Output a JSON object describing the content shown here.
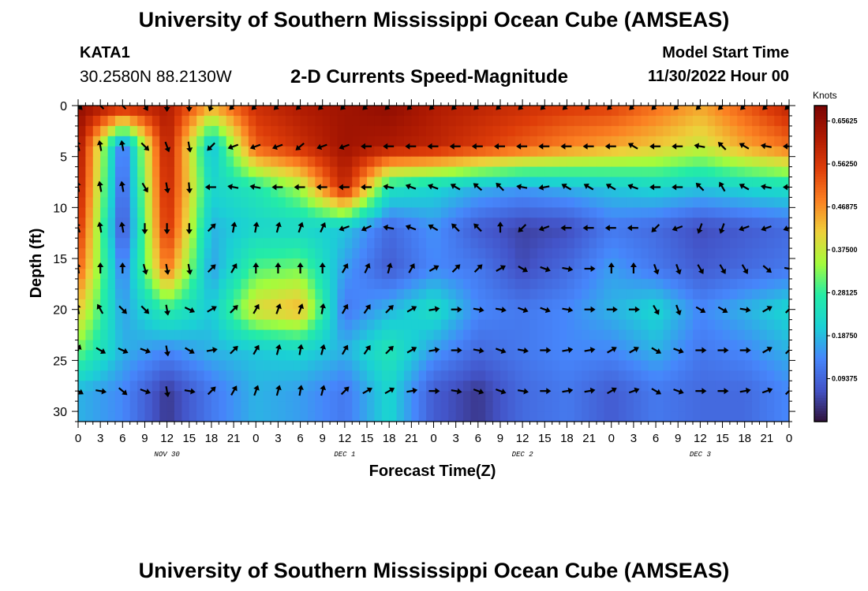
{
  "header": {
    "title": "University of Southern Mississippi Ocean Cube (AMSEAS)",
    "station": "KATA1",
    "coords": "30.2580N  88.2130W",
    "subtitle": "2-D Currents Speed-Magnitude",
    "model_start_label": "Model Start Time",
    "model_start_time": "11/30/2022 Hour 00"
  },
  "footer": {
    "title_repeat": "University of Southern Mississippi Ocean Cube (AMSEAS)"
  },
  "chart_data": {
    "type": "heatmap",
    "title": "2-D Currents Speed-Magnitude",
    "xlabel": "Forecast Time(Z)",
    "ylabel": "Depth (ft)",
    "xlim": [
      0,
      96
    ],
    "ylim": [
      31,
      0
    ],
    "x_ticks": [
      0,
      3,
      6,
      9,
      12,
      15,
      18,
      21,
      24,
      27,
      30,
      33,
      36,
      39,
      42,
      45,
      48,
      51,
      54,
      57,
      60,
      63,
      66,
      69,
      72,
      75,
      78,
      81,
      84,
      87,
      90,
      93,
      96
    ],
    "x_tick_labels": [
      "0",
      "3",
      "6",
      "9",
      "12",
      "15",
      "18",
      "21",
      "0",
      "3",
      "6",
      "9",
      "12",
      "15",
      "18",
      "21",
      "0",
      "3",
      "6",
      "9",
      "12",
      "15",
      "18",
      "21",
      "0",
      "3",
      "6",
      "9",
      "12",
      "15",
      "18",
      "21",
      "0"
    ],
    "y_ticks": [
      0,
      5,
      10,
      15,
      20,
      25,
      30
    ],
    "y_tick_labels": [
      "0",
      "5",
      "10",
      "15",
      "20",
      "25",
      "30"
    ],
    "day_labels": [
      {
        "label": "NOV 30",
        "hour": 12
      },
      {
        "label": "DEC 1",
        "hour": 36
      },
      {
        "label": "DEC 2",
        "hour": 60
      },
      {
        "label": "DEC 3",
        "hour": 84
      }
    ],
    "colorbar": {
      "units": "Knots",
      "min": 0.0,
      "max": 0.69,
      "ticks": [
        0.65625,
        0.5625,
        0.46875,
        0.375,
        0.28125,
        0.1875,
        0.09375
      ],
      "tick_labels": [
        "0.65625",
        "0.56250",
        "0.46875",
        "0.37500",
        "0.28125",
        "0.18750",
        "0.09375"
      ]
    },
    "depths": [
      0,
      4,
      8,
      12,
      16,
      20,
      24,
      28
    ],
    "hours": [
      0,
      6,
      12,
      18,
      24,
      30,
      36,
      42,
      48,
      54,
      60,
      66,
      72,
      78,
      84,
      90,
      96
    ],
    "speed": [
      [
        0.66,
        0.6,
        0.62,
        0.45,
        0.58,
        0.62,
        0.64,
        0.66,
        0.62,
        0.6,
        0.58,
        0.56,
        0.55,
        0.5,
        0.45,
        0.52,
        0.6
      ],
      [
        0.64,
        0.1,
        0.62,
        0.18,
        0.52,
        0.58,
        0.64,
        0.62,
        0.6,
        0.56,
        0.52,
        0.48,
        0.45,
        0.42,
        0.38,
        0.45,
        0.5
      ],
      [
        0.62,
        0.08,
        0.6,
        0.22,
        0.26,
        0.35,
        0.6,
        0.25,
        0.22,
        0.18,
        0.16,
        0.18,
        0.2,
        0.22,
        0.2,
        0.22,
        0.24
      ],
      [
        0.58,
        0.06,
        0.58,
        0.18,
        0.22,
        0.22,
        0.2,
        0.1,
        0.15,
        0.08,
        0.05,
        0.06,
        0.12,
        0.1,
        0.06,
        0.08,
        0.1
      ],
      [
        0.52,
        0.12,
        0.5,
        0.16,
        0.3,
        0.32,
        0.16,
        0.08,
        0.14,
        0.12,
        0.06,
        0.1,
        0.16,
        0.12,
        0.08,
        0.1,
        0.12
      ],
      [
        0.42,
        0.16,
        0.28,
        0.2,
        0.4,
        0.44,
        0.12,
        0.18,
        0.24,
        0.14,
        0.12,
        0.14,
        0.18,
        0.22,
        0.14,
        0.18,
        0.22
      ],
      [
        0.32,
        0.18,
        0.14,
        0.18,
        0.2,
        0.22,
        0.18,
        0.26,
        0.16,
        0.1,
        0.12,
        0.14,
        0.14,
        0.18,
        0.12,
        0.14,
        0.18
      ],
      [
        0.18,
        0.14,
        0.04,
        0.12,
        0.18,
        0.16,
        0.12,
        0.22,
        0.08,
        0.04,
        0.1,
        0.12,
        0.08,
        0.12,
        0.1,
        0.1,
        0.14
      ]
    ],
    "arrow_depths": [
      0,
      4,
      8,
      12,
      16,
      20,
      24,
      28
    ],
    "arrow_hours": [
      0,
      3,
      6,
      9,
      12,
      15,
      18,
      21,
      24,
      27,
      30,
      33,
      36,
      39,
      42,
      45,
      48,
      51,
      54,
      57,
      60,
      63,
      66,
      69,
      72,
      75,
      78,
      81,
      84,
      87,
      90,
      93,
      96
    ],
    "arrow_direction_deg": [
      [
        135,
        315,
        315,
        150,
        180,
        180,
        200,
        225,
        225,
        225,
        225,
        225,
        225,
        225,
        225,
        225,
        225,
        225,
        225,
        225,
        225,
        225,
        225,
        225,
        225,
        225,
        225,
        225,
        225,
        225,
        225,
        225,
        225
      ],
      [
        345,
        350,
        350,
        135,
        160,
        170,
        225,
        250,
        250,
        250,
        230,
        250,
        250,
        270,
        270,
        270,
        270,
        270,
        270,
        270,
        270,
        270,
        270,
        270,
        270,
        300,
        270,
        270,
        280,
        315,
        300,
        280,
        270
      ],
      [
        350,
        350,
        350,
        150,
        170,
        175,
        270,
        280,
        280,
        270,
        270,
        270,
        270,
        270,
        280,
        290,
        290,
        300,
        310,
        315,
        280,
        260,
        300,
        300,
        300,
        290,
        270,
        270,
        315,
        330,
        300,
        280,
        270
      ],
      [
        340,
        350,
        350,
        180,
        180,
        180,
        45,
        10,
        10,
        15,
        20,
        25,
        250,
        245,
        280,
        290,
        300,
        315,
        315,
        0,
        225,
        250,
        270,
        270,
        270,
        270,
        225,
        250,
        200,
        200,
        250,
        250,
        250
      ],
      [
        350,
        0,
        0,
        165,
        170,
        170,
        45,
        30,
        0,
        0,
        0,
        0,
        30,
        25,
        15,
        30,
        60,
        45,
        45,
        60,
        120,
        110,
        100,
        90,
        0,
        0,
        160,
        160,
        150,
        150,
        150,
        130,
        100
      ],
      [
        350,
        330,
        135,
        135,
        170,
        115,
        60,
        45,
        30,
        20,
        20,
        10,
        30,
        35,
        45,
        60,
        80,
        90,
        100,
        100,
        110,
        110,
        100,
        90,
        90,
        90,
        150,
        160,
        120,
        120,
        100,
        60,
        45
      ],
      [
        20,
        120,
        115,
        110,
        170,
        120,
        80,
        45,
        30,
        15,
        10,
        15,
        30,
        35,
        45,
        60,
        80,
        90,
        100,
        110,
        100,
        90,
        80,
        80,
        60,
        60,
        120,
        110,
        90,
        90,
        90,
        60,
        45
      ],
      [
        120,
        100,
        130,
        110,
        170,
        100,
        45,
        30,
        20,
        15,
        10,
        15,
        45,
        60,
        60,
        80,
        90,
        100,
        110,
        110,
        100,
        90,
        80,
        80,
        60,
        70,
        120,
        110,
        90,
        90,
        80,
        70,
        45
      ]
    ]
  }
}
